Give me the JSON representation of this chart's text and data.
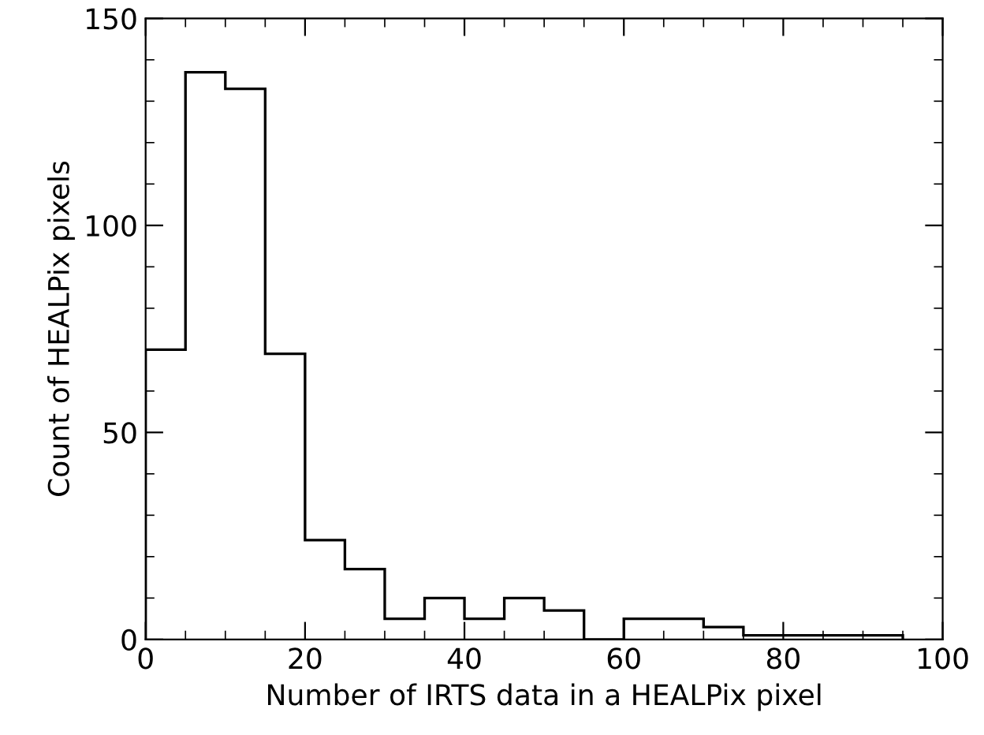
{
  "chart_data": {
    "type": "histogram",
    "xlabel": "Number of IRTS data in a HEALPix pixel",
    "ylabel": "Count of HEALPix pixels",
    "bins": [
      0,
      5,
      10,
      15,
      20,
      25,
      30,
      35,
      40,
      45,
      50,
      55,
      60,
      65,
      70,
      75,
      80,
      85,
      90,
      95
    ],
    "values": [
      70,
      137,
      133,
      69,
      24,
      17,
      5,
      10,
      5,
      10,
      7,
      0,
      5,
      5,
      3,
      1,
      1,
      1,
      1
    ],
    "color": "#000000",
    "xlim": [
      0,
      100
    ],
    "ylim": [
      0,
      150
    ],
    "xticks": [
      0,
      20,
      40,
      60,
      80,
      100
    ],
    "yticks": [
      0,
      50,
      100,
      150
    ],
    "grid": false
  }
}
